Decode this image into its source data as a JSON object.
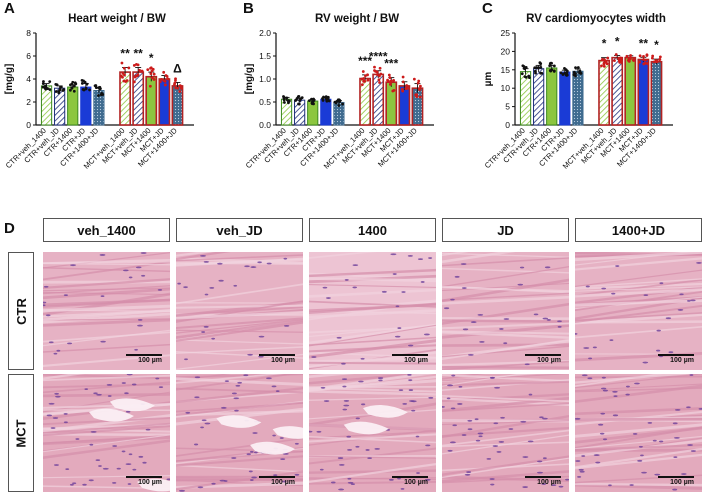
{
  "colors": {
    "green_fill": "#8cc63f",
    "green_outline": "#3b8a1e",
    "navy": "#1f2f7a",
    "blue": "#1a3bd6",
    "slate": "#3f6b8f",
    "red": "#b22222",
    "dot_dark": "#111111",
    "dot_red": "#cc1b1b"
  },
  "panel_letters": [
    "A",
    "B",
    "C",
    "D"
  ],
  "chart_data": [
    {
      "type": "bar",
      "title": "Heart weight / BW",
      "ylabel": "[mg/g]",
      "ylim": [
        0,
        8
      ],
      "yticks": [
        "0",
        "2",
        "4",
        "6",
        "8"
      ],
      "categories": [
        "CTR+veh_1400",
        "CTR+veh_JD",
        "CTR+1400",
        "CTR+JD",
        "CTR+1400+JD",
        "MCT+veh_1400",
        "MCT+veh_JD",
        "MCT+1400",
        "MCT+JD",
        "MCT+1400+JD"
      ],
      "values": [
        3.4,
        3.2,
        3.3,
        3.3,
        3.0,
        4.6,
        4.6,
        4.2,
        4.0,
        3.4
      ],
      "errors": [
        0.2,
        0.2,
        0.2,
        0.3,
        0.2,
        0.4,
        0.4,
        0.4,
        0.3,
        0.3
      ],
      "significance": [
        "",
        "",
        "",
        "",
        "",
        "**",
        "**",
        "*",
        "",
        "Δ"
      ]
    },
    {
      "type": "bar",
      "title": "RV weight / BW",
      "ylabel": "[mg/g]",
      "ylim": [
        0,
        2.0
      ],
      "yticks": [
        "0.0",
        "0.5",
        "1.0",
        "1.5",
        "2.0"
      ],
      "categories": [
        "CTR+veh_1400",
        "CTR+veh_JD",
        "CTR+1400",
        "CTR+JD",
        "CTR+1400+JD",
        "MCT+veh_1400",
        "MCT+veh_JD",
        "MCT+1400",
        "MCT+JD",
        "MCT+1400+JD"
      ],
      "values": [
        0.56,
        0.54,
        0.52,
        0.56,
        0.49,
        1.01,
        1.1,
        0.93,
        0.85,
        0.8
      ],
      "errors": [
        0.04,
        0.04,
        0.03,
        0.04,
        0.04,
        0.08,
        0.08,
        0.1,
        0.09,
        0.1
      ],
      "significance": [
        "",
        "",
        "",
        "",
        "",
        "***",
        "****",
        "***",
        "",
        ""
      ]
    },
    {
      "type": "bar",
      "title": "RV cardiomyocytes width",
      "ylabel": "µm",
      "ylim": [
        0,
        25
      ],
      "yticks": [
        "0",
        "5",
        "10",
        "15",
        "20",
        "25"
      ],
      "categories": [
        "CTR+veh_1400",
        "CTR+veh_JD",
        "CTR+1400",
        "CTR+JD",
        "CTR+1400+JD",
        "MCT+veh_1400",
        "MCT+veh_JD",
        "MCT+1400",
        "MCT+JD",
        "MCT+1400+JD"
      ],
      "values": [
        14.5,
        15.3,
        15.5,
        14.4,
        14.6,
        17.5,
        18.3,
        18.3,
        17.8,
        17.2
      ],
      "errors": [
        0.8,
        0.9,
        0.7,
        0.5,
        0.6,
        0.8,
        0.6,
        0.5,
        0.6,
        0.7
      ],
      "significance": [
        "",
        "",
        "",
        "",
        "",
        "*",
        "*",
        "",
        "**",
        "*"
      ]
    }
  ],
  "histology": {
    "columns": [
      "veh_1400",
      "veh_JD",
      "1400",
      "JD",
      "1400+JD"
    ],
    "rows": [
      "CTR",
      "MCT"
    ],
    "scale_label": "100 µm"
  }
}
